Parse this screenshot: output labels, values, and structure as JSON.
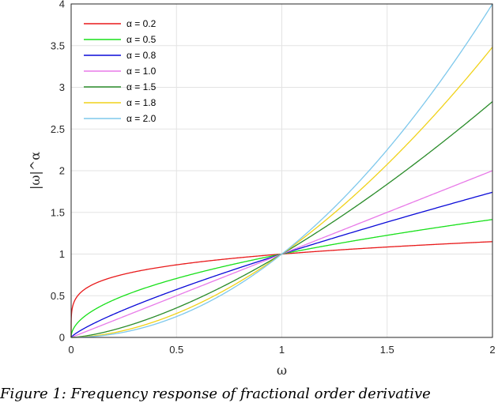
{
  "chart_data": {
    "type": "line",
    "title": "",
    "xlabel": "ω",
    "ylabel": "|ω|^α",
    "xlim": [
      0,
      2
    ],
    "ylim": [
      0,
      4
    ],
    "xticks": [
      "0",
      "0.5",
      "1",
      "1.5",
      "2"
    ],
    "yticks": [
      "0",
      "0.5",
      "1",
      "1.5",
      "2",
      "2.5",
      "3",
      "3.5",
      "4"
    ],
    "grid": true,
    "legend_position": "top-left",
    "series": [
      {
        "name": "α = 0.2",
        "alpha": 0.2,
        "color": "#e8191a"
      },
      {
        "name": "α = 0.5",
        "alpha": 0.5,
        "color": "#18e01a"
      },
      {
        "name": "α = 0.8",
        "alpha": 0.8,
        "color": "#0a0ad8"
      },
      {
        "name": "α = 1.0",
        "alpha": 1.0,
        "color": "#e87ae8"
      },
      {
        "name": "α = 1.5",
        "alpha": 1.5,
        "color": "#2a8c2a"
      },
      {
        "name": "α = 1.8",
        "alpha": 1.8,
        "color": "#f0d21a"
      },
      {
        "name": "α = 2.0",
        "alpha": 2.0,
        "color": "#7ec8ec"
      }
    ]
  },
  "caption": "Figure 1: Frequency response of fractional order derivative"
}
